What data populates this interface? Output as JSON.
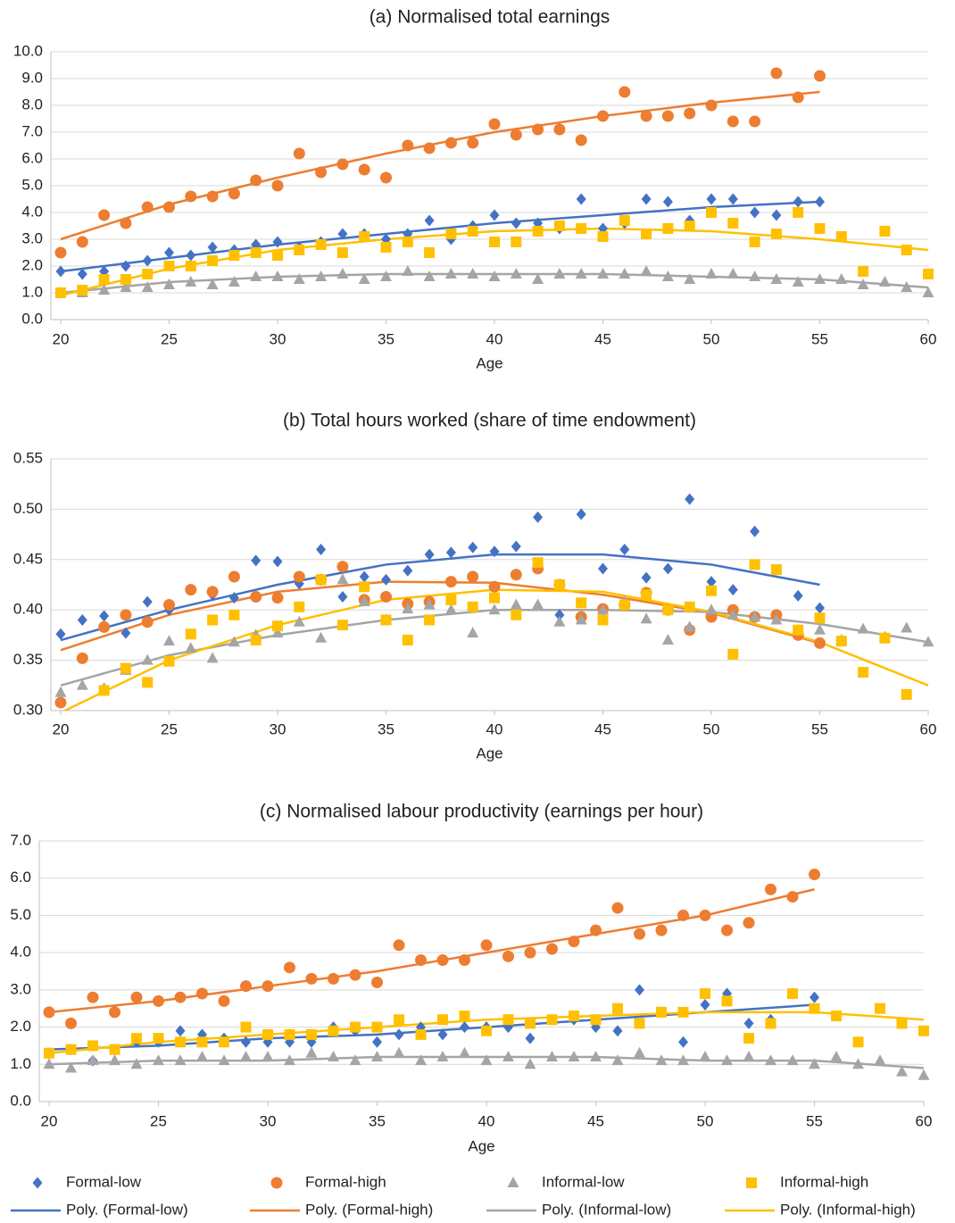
{
  "chart_data": [
    {
      "type": "scatter",
      "title": "(a) Normalised total earnings",
      "x_label": "Age",
      "x": [
        20,
        21,
        22,
        23,
        24,
        25,
        26,
        27,
        28,
        29,
        30,
        31,
        32,
        33,
        34,
        35,
        36,
        37,
        38,
        39,
        40,
        41,
        42,
        43,
        44,
        45,
        46,
        47,
        48,
        49,
        50,
        51,
        52,
        53,
        54,
        55,
        56,
        57,
        58,
        59,
        60
      ],
      "xlim": [
        20,
        60
      ],
      "xticks": [
        20,
        25,
        30,
        35,
        40,
        45,
        50,
        55,
        60
      ],
      "ylim": [
        0,
        10
      ],
      "yticks": [
        {
          "value": 0,
          "label": "0.0"
        },
        {
          "value": 1,
          "label": "1.0"
        },
        {
          "value": 2,
          "label": "2.0"
        },
        {
          "value": 3,
          "label": "3.0"
        },
        {
          "value": 4,
          "label": "4.0"
        },
        {
          "value": 5,
          "label": "5.0"
        },
        {
          "value": 6,
          "label": "6.0"
        },
        {
          "value": 7,
          "label": "7.0"
        },
        {
          "value": 8,
          "label": "8.0"
        },
        {
          "value": 9,
          "label": "9.0"
        },
        {
          "value": 10,
          "label": "10.0"
        }
      ],
      "grid": true,
      "series": [
        {
          "color": "#4472c4",
          "marker": "diamond",
          "values": [
            1.8,
            1.7,
            1.8,
            2.0,
            2.2,
            2.5,
            2.4,
            2.7,
            2.6,
            2.8,
            2.9,
            2.7,
            2.9,
            3.2,
            3.2,
            3.0,
            3.2,
            3.7,
            3.0,
            3.5,
            3.9,
            3.6,
            3.6,
            3.4,
            4.5,
            3.4,
            3.6,
            4.5,
            4.4,
            3.7,
            4.5,
            4.5,
            4.0,
            3.9,
            4.4,
            4.4,
            null,
            null,
            null,
            null,
            null
          ]
        },
        {
          "color": "#ed7d31",
          "marker": "circle",
          "values": [
            2.5,
            2.9,
            3.9,
            3.6,
            4.2,
            4.2,
            4.6,
            4.6,
            4.7,
            5.2,
            5.0,
            6.2,
            5.5,
            5.8,
            5.6,
            5.3,
            6.5,
            6.4,
            6.6,
            6.6,
            7.3,
            6.9,
            7.1,
            7.1,
            6.7,
            7.6,
            8.5,
            7.6,
            7.6,
            7.7,
            8.0,
            7.4,
            7.4,
            9.2,
            8.3,
            9.1,
            null,
            null,
            null,
            null,
            null
          ]
        },
        {
          "color": "#a5a5a5",
          "marker": "triangle",
          "values": [
            1.0,
            1.0,
            1.1,
            1.2,
            1.2,
            1.3,
            1.4,
            1.3,
            1.4,
            1.6,
            1.6,
            1.5,
            1.6,
            1.7,
            1.5,
            1.6,
            1.8,
            1.6,
            1.7,
            1.7,
            1.6,
            1.7,
            1.5,
            1.7,
            1.7,
            1.7,
            1.7,
            1.8,
            1.6,
            1.5,
            1.7,
            1.7,
            1.6,
            1.5,
            1.4,
            1.5,
            1.5,
            1.3,
            1.4,
            1.2,
            1.0
          ]
        },
        {
          "color": "#ffc000",
          "marker": "square",
          "values": [
            1.0,
            1.1,
            1.5,
            1.5,
            1.7,
            2.0,
            2.0,
            2.2,
            2.4,
            2.5,
            2.4,
            2.6,
            2.8,
            2.5,
            3.1,
            2.7,
            2.9,
            2.5,
            3.2,
            3.3,
            2.9,
            2.9,
            3.3,
            3.5,
            3.4,
            3.1,
            3.7,
            3.2,
            3.4,
            3.5,
            4.0,
            3.6,
            2.9,
            3.2,
            4.0,
            3.4,
            3.1,
            1.8,
            3.3,
            2.6,
            1.7
          ]
        },
        {
          "color": "#4472c4",
          "line": true,
          "x": [
            20,
            25,
            30,
            35,
            40,
            45,
            50,
            55
          ],
          "values": [
            1.8,
            2.3,
            2.8,
            3.2,
            3.6,
            3.9,
            4.2,
            4.4
          ]
        },
        {
          "color": "#ed7d31",
          "line": true,
          "x": [
            20,
            25,
            30,
            35,
            40,
            45,
            50,
            55
          ],
          "values": [
            3.0,
            4.3,
            5.3,
            6.2,
            7.0,
            7.6,
            8.1,
            8.5
          ]
        },
        {
          "color": "#a5a5a5",
          "line": true,
          "x": [
            20,
            25,
            30,
            35,
            40,
            45,
            50,
            55,
            60
          ],
          "values": [
            1.0,
            1.4,
            1.6,
            1.7,
            1.7,
            1.7,
            1.6,
            1.5,
            1.2
          ]
        },
        {
          "color": "#ffc000",
          "line": true,
          "x": [
            20,
            25,
            30,
            35,
            40,
            45,
            50,
            55,
            60
          ],
          "values": [
            0.9,
            1.9,
            2.6,
            3.0,
            3.3,
            3.4,
            3.3,
            3.0,
            2.6
          ]
        }
      ]
    },
    {
      "type": "scatter",
      "title": "(b) Total hours worked (share of time endowment)",
      "x_label": "Age",
      "x": [
        20,
        21,
        22,
        23,
        24,
        25,
        26,
        27,
        28,
        29,
        30,
        31,
        32,
        33,
        34,
        35,
        36,
        37,
        38,
        39,
        40,
        41,
        42,
        43,
        44,
        45,
        46,
        47,
        48,
        49,
        50,
        51,
        52,
        53,
        54,
        55,
        56,
        57,
        58,
        59,
        60
      ],
      "xlim": [
        20,
        60
      ],
      "xticks": [
        20,
        25,
        30,
        35,
        40,
        45,
        50,
        55,
        60
      ],
      "ylim": [
        0.3,
        0.55
      ],
      "yticks": [
        {
          "value": 0.3,
          "label": "0.30"
        },
        {
          "value": 0.35,
          "label": "0.35"
        },
        {
          "value": 0.4,
          "label": "0.40"
        },
        {
          "value": 0.45,
          "label": "0.45"
        },
        {
          "value": 0.5,
          "label": "0.50"
        },
        {
          "value": 0.55,
          "label": "0.55"
        }
      ],
      "grid": true,
      "series": [
        {
          "color": "#4472c4",
          "marker": "diamond",
          "values": [
            0.376,
            0.39,
            0.394,
            0.377,
            0.408,
            0.4,
            0.42,
            0.415,
            0.412,
            0.449,
            0.448,
            0.426,
            0.46,
            0.413,
            0.433,
            0.43,
            0.439,
            0.455,
            0.457,
            0.462,
            0.458,
            0.463,
            0.492,
            0.395,
            0.495,
            0.441,
            0.46,
            0.432,
            0.441,
            0.51,
            0.428,
            0.42,
            0.478,
            0.393,
            0.414,
            0.402,
            null,
            null,
            null,
            null,
            null
          ]
        },
        {
          "color": "#ed7d31",
          "marker": "circle",
          "values": [
            0.308,
            0.352,
            0.383,
            0.395,
            0.388,
            0.405,
            0.42,
            0.418,
            0.433,
            0.413,
            0.412,
            0.433,
            0.43,
            0.443,
            0.41,
            0.413,
            0.406,
            0.408,
            0.428,
            0.433,
            0.423,
            0.435,
            0.441,
            0.425,
            0.393,
            0.401,
            0.405,
            0.417,
            0.4,
            0.38,
            0.393,
            0.4,
            0.393,
            0.395,
            0.375,
            0.367,
            null,
            null,
            null,
            null,
            null
          ]
        },
        {
          "color": "#a5a5a5",
          "marker": "triangle",
          "values": [
            0.318,
            0.325,
            0.322,
            0.34,
            0.35,
            0.369,
            0.362,
            0.352,
            0.368,
            0.375,
            0.377,
            0.388,
            0.372,
            0.43,
            0.408,
            0.39,
            0.401,
            0.405,
            0.4,
            0.377,
            0.4,
            0.405,
            0.405,
            0.388,
            0.39,
            0.4,
            0.408,
            0.391,
            0.37,
            0.383,
            0.4,
            0.395,
            0.393,
            0.39,
            0.38,
            0.38,
            0.37,
            0.381,
            0.373,
            0.382,
            0.368
          ]
        },
        {
          "color": "#ffc000",
          "marker": "square",
          "values": [
            null,
            null,
            0.32,
            0.342,
            0.328,
            0.349,
            0.376,
            0.39,
            0.395,
            0.37,
            0.384,
            0.403,
            0.43,
            0.385,
            0.423,
            0.39,
            0.37,
            0.39,
            0.41,
            0.403,
            0.412,
            0.395,
            0.447,
            0.425,
            0.407,
            0.39,
            0.405,
            0.415,
            0.4,
            0.403,
            0.419,
            0.356,
            0.445,
            0.44,
            0.38,
            0.392,
            0.369,
            0.338,
            0.372,
            0.316,
            null
          ]
        },
        {
          "color": "#4472c4",
          "line": true,
          "x": [
            20,
            25,
            30,
            35,
            40,
            45,
            50,
            55
          ],
          "values": [
            0.37,
            0.4,
            0.425,
            0.445,
            0.455,
            0.455,
            0.445,
            0.425
          ]
        },
        {
          "color": "#ed7d31",
          "line": true,
          "x": [
            20,
            25,
            30,
            35,
            40,
            45,
            50,
            55
          ],
          "values": [
            0.36,
            0.395,
            0.418,
            0.428,
            0.427,
            0.415,
            0.397,
            0.367
          ]
        },
        {
          "color": "#a5a5a5",
          "line": true,
          "x": [
            20,
            25,
            30,
            35,
            40,
            45,
            50,
            55,
            60
          ],
          "values": [
            0.325,
            0.355,
            0.375,
            0.39,
            0.4,
            0.4,
            0.398,
            0.386,
            0.368
          ]
        },
        {
          "color": "#ffc000",
          "line": true,
          "x": [
            20,
            25,
            30,
            35,
            40,
            45,
            50,
            55,
            60
          ],
          "values": [
            0.298,
            0.35,
            0.385,
            0.41,
            0.42,
            0.418,
            0.398,
            0.368,
            0.325
          ]
        }
      ]
    },
    {
      "type": "scatter",
      "title": "(c) Normalised labour productivity (earnings per hour)",
      "x_label": "Age",
      "x": [
        20,
        21,
        22,
        23,
        24,
        25,
        26,
        27,
        28,
        29,
        30,
        31,
        32,
        33,
        34,
        35,
        36,
        37,
        38,
        39,
        40,
        41,
        42,
        43,
        44,
        45,
        46,
        47,
        48,
        49,
        50,
        51,
        52,
        53,
        54,
        55,
        56,
        57,
        58,
        59,
        60
      ],
      "xlim": [
        20,
        60
      ],
      "xticks": [
        20,
        25,
        30,
        35,
        40,
        45,
        50,
        55,
        60
      ],
      "ylim": [
        0,
        7
      ],
      "yticks": [
        {
          "value": 0,
          "label": "0.0"
        },
        {
          "value": 1,
          "label": "1.0"
        },
        {
          "value": 2,
          "label": "2.0"
        },
        {
          "value": 3,
          "label": "3.0"
        },
        {
          "value": 4,
          "label": "4.0"
        },
        {
          "value": 5,
          "label": "5.0"
        },
        {
          "value": 6,
          "label": "6.0"
        },
        {
          "value": 7,
          "label": "7.0"
        }
      ],
      "grid": true,
      "series": [
        {
          "name": "Formal-low",
          "color": "#4472c4",
          "marker": "diamond",
          "values": [
            1.3,
            1.4,
            1.1,
            1.4,
            1.6,
            1.6,
            1.9,
            1.8,
            1.7,
            1.6,
            1.6,
            1.6,
            1.6,
            2.0,
            1.9,
            1.6,
            1.8,
            2.0,
            1.8,
            2.0,
            2.0,
            2.0,
            1.7,
            2.2,
            2.2,
            2.0,
            1.9,
            3.0,
            2.4,
            1.6,
            2.6,
            2.9,
            2.1,
            2.2,
            2.9,
            2.8,
            null,
            null,
            null,
            null,
            null
          ]
        },
        {
          "name": "Formal-high",
          "color": "#ed7d31",
          "marker": "circle",
          "values": [
            2.4,
            2.1,
            2.8,
            2.4,
            2.8,
            2.7,
            2.8,
            2.9,
            2.7,
            3.1,
            3.1,
            3.6,
            3.3,
            3.3,
            3.4,
            3.2,
            4.2,
            3.8,
            3.8,
            3.8,
            4.2,
            3.9,
            4.0,
            4.1,
            4.3,
            4.6,
            5.2,
            4.5,
            4.6,
            5.0,
            5.0,
            4.6,
            4.8,
            5.7,
            5.5,
            6.1,
            null,
            null,
            null,
            null,
            null
          ]
        },
        {
          "name": "Informal-low",
          "color": "#a5a5a5",
          "marker": "triangle",
          "values": [
            1.0,
            0.9,
            1.1,
            1.1,
            1.0,
            1.1,
            1.1,
            1.2,
            1.1,
            1.2,
            1.2,
            1.1,
            1.3,
            1.2,
            1.1,
            1.2,
            1.3,
            1.1,
            1.2,
            1.3,
            1.1,
            1.2,
            1.0,
            1.2,
            1.2,
            1.2,
            1.1,
            1.3,
            1.1,
            1.1,
            1.2,
            1.1,
            1.2,
            1.1,
            1.1,
            1.0,
            1.2,
            1.0,
            1.1,
            0.8,
            0.7
          ]
        },
        {
          "name": "Informal-high",
          "color": "#ffc000",
          "marker": "square",
          "values": [
            1.3,
            1.4,
            1.5,
            1.4,
            1.7,
            1.7,
            1.6,
            1.6,
            1.6,
            2.0,
            1.8,
            1.8,
            1.8,
            1.9,
            2.0,
            2.0,
            2.2,
            1.8,
            2.2,
            2.3,
            1.9,
            2.2,
            2.1,
            2.2,
            2.3,
            2.2,
            2.5,
            2.1,
            2.4,
            2.4,
            2.9,
            2.7,
            1.7,
            2.1,
            2.9,
            2.5,
            2.3,
            1.6,
            2.5,
            2.1,
            1.9
          ]
        },
        {
          "name": "Poly. (Formal-low)",
          "color": "#4472c4",
          "line": true,
          "x": [
            20,
            25,
            30,
            35,
            40,
            45,
            50,
            55
          ],
          "values": [
            1.4,
            1.5,
            1.7,
            1.8,
            2.0,
            2.2,
            2.4,
            2.6
          ]
        },
        {
          "name": "Poly. (Formal-high)",
          "color": "#ed7d31",
          "line": true,
          "x": [
            20,
            25,
            30,
            35,
            40,
            45,
            50,
            55
          ],
          "values": [
            2.4,
            2.7,
            3.1,
            3.5,
            4.0,
            4.5,
            5.0,
            5.7
          ]
        },
        {
          "name": "Poly. (Informal-low)",
          "color": "#a5a5a5",
          "line": true,
          "x": [
            20,
            25,
            30,
            35,
            40,
            45,
            50,
            55,
            60
          ],
          "values": [
            1.0,
            1.1,
            1.1,
            1.2,
            1.2,
            1.2,
            1.1,
            1.1,
            0.9
          ]
        },
        {
          "name": "Poly. (Informal-high)",
          "color": "#ffc000",
          "line": true,
          "x": [
            20,
            25,
            30,
            35,
            40,
            45,
            50,
            55,
            60
          ],
          "values": [
            1.3,
            1.6,
            1.8,
            2.0,
            2.2,
            2.3,
            2.4,
            2.4,
            2.2
          ]
        }
      ]
    }
  ]
}
